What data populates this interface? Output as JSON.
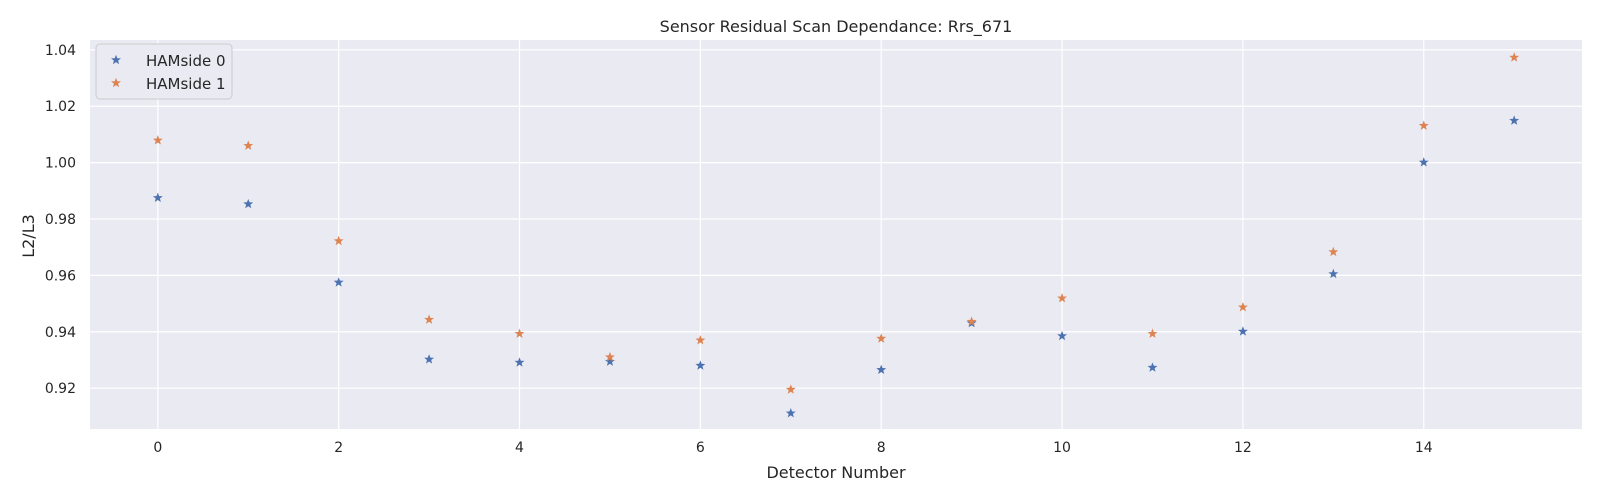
{
  "chart_data": {
    "type": "scatter",
    "title": "Sensor Residual Scan Dependance: Rrs_671",
    "xlabel": "Detector Number",
    "ylabel": "L2/L3",
    "xlim": [
      -0.75,
      15.75
    ],
    "ylim": [
      0.9055,
      1.0435
    ],
    "xticks": [
      0,
      2,
      4,
      6,
      8,
      10,
      12,
      14
    ],
    "yticks": [
      0.92,
      0.94,
      0.96,
      0.98,
      1.0,
      1.02,
      1.04
    ],
    "ytick_labels": [
      "0.92",
      "0.94",
      "0.96",
      "0.98",
      "1.00",
      "1.02",
      "1.04"
    ],
    "grid": true,
    "legend_position": "top-left",
    "marker": "star",
    "x": [
      0,
      1,
      2,
      3,
      4,
      5,
      6,
      7,
      8,
      9,
      10,
      11,
      12,
      13,
      14,
      15
    ],
    "series": [
      {
        "name": "HAMside 0",
        "color": "#4c72b0",
        "values": [
          0.9875,
          0.9853,
          0.9575,
          0.9302,
          0.9291,
          0.9294,
          0.928,
          0.9111,
          0.9265,
          0.9431,
          0.9385,
          0.9273,
          0.9401,
          0.9605,
          1.0001,
          1.0149
        ]
      },
      {
        "name": "HAMside 1",
        "color": "#dd8452",
        "values": [
          1.0079,
          1.006,
          0.9722,
          0.9443,
          0.9393,
          0.931,
          0.937,
          0.9195,
          0.9376,
          0.9436,
          0.9519,
          0.9393,
          0.9487,
          0.9683,
          1.0131,
          1.0373
        ]
      }
    ]
  }
}
